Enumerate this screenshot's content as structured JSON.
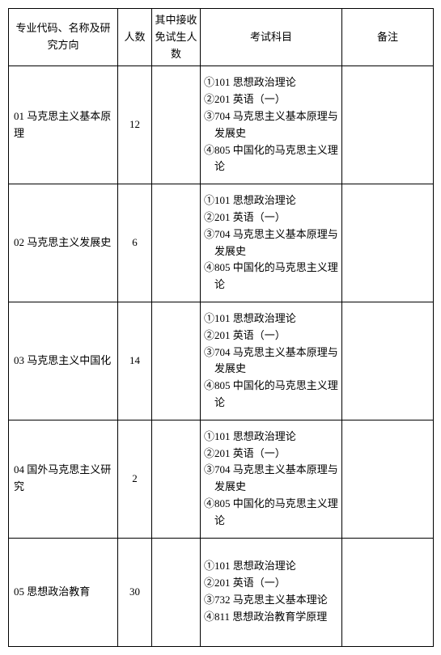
{
  "headers": {
    "col1": "专业代码、名称及研究方向",
    "col2": "人数",
    "col3": "其中接收免试生人数",
    "col4": "考试科目",
    "col5": "备注"
  },
  "rows": [
    {
      "major": "01 马克思主义基本原理",
      "num": "12",
      "exempt": "",
      "s1": "①101 思想政治理论",
      "s2": "②201 英语（一）",
      "s3": "③704 马克思主义基本原理与发展史",
      "s4": "④805 中国化的马克思主义理论",
      "remark": ""
    },
    {
      "major": "02 马克思主义发展史",
      "num": "6",
      "exempt": "",
      "s1": "①101 思想政治理论",
      "s2": "②201 英语（一）",
      "s3": "③704 马克思主义基本原理与发展史",
      "s4": "④805 中国化的马克思主义理论",
      "remark": ""
    },
    {
      "major": "03 马克思主义中国化",
      "num": "14",
      "exempt": "",
      "s1": "①101 思想政治理论",
      "s2": "②201 英语（一）",
      "s3": "③704 马克思主义基本原理与发展史",
      "s4": "④805 中国化的马克思主义理论",
      "remark": ""
    },
    {
      "major": "04 国外马克思主义研究",
      "num": "2",
      "exempt": "",
      "s1": "①101 思想政治理论",
      "s2": "②201 英语（一）",
      "s3": "③704 马克思主义基本原理与发展史",
      "s4": "④805 中国化的马克思主义理论",
      "remark": ""
    },
    {
      "major": "05 思想政治教育",
      "num": "30",
      "exempt": "",
      "s1": "①101 思想政治理论",
      "s2": "②201 英语（一）",
      "s3": "③732 马克思主义基本理论",
      "s4": "④811 思想政治教育学原理",
      "remark": ""
    }
  ]
}
